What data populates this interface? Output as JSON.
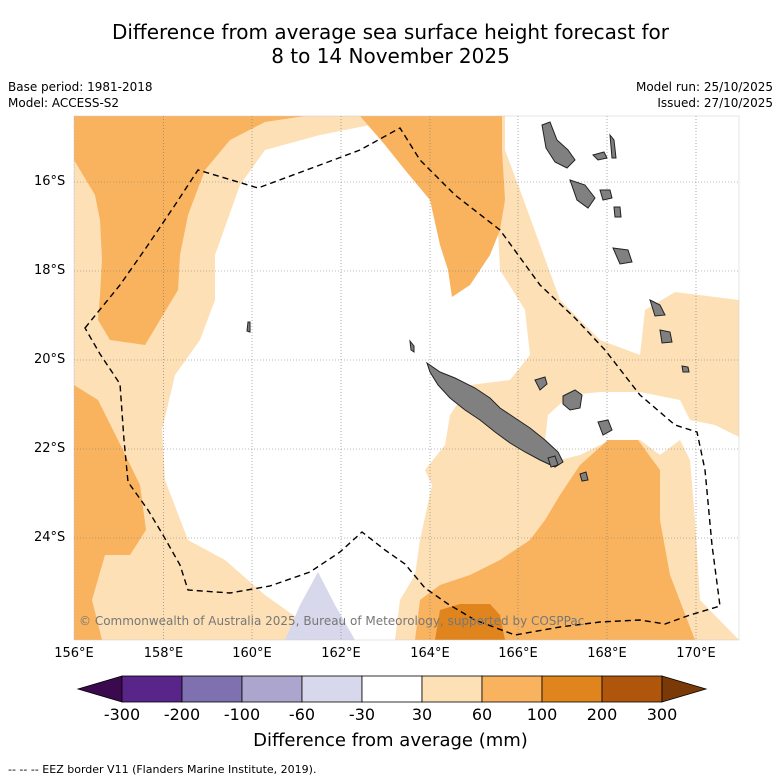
{
  "title": {
    "line1": "Difference from average sea surface height forecast for",
    "line2": "8 to 14 November 2025"
  },
  "meta": {
    "base_period": "Base period: 1981-2018",
    "model": "Model: ACCESS-S2",
    "model_run": "Model run: 25/10/2025",
    "issued": "Issued: 27/10/2025"
  },
  "map": {
    "lat_labels": [
      "16°S",
      "18°S",
      "20°S",
      "22°S",
      "24°S"
    ],
    "lon_labels": [
      "156°E",
      "158°E",
      "160°E",
      "162°E",
      "164°E",
      "166°E",
      "168°E",
      "170°E"
    ],
    "copyright": "© Commonwealth of Australia 2025, Bureau of Meteorology, supported by COSPPac",
    "colors": {
      "ocean": "#ffffff",
      "band_30_60": "#fde0b6",
      "band_60_100": "#f9b35e",
      "band_100_200": "#e0851e",
      "band_m60_m30": "#d8d8ec",
      "land": "#808080",
      "grid": "#777777"
    }
  },
  "colorbar": {
    "title": "Difference from average (mm)",
    "tick_labels": [
      "-300",
      "-200",
      "-100",
      "-60",
      "-30",
      "30",
      "60",
      "100",
      "200",
      "300"
    ],
    "colors": [
      "#3b0a4e",
      "#5a2589",
      "#7f70b0",
      "#aca6cf",
      "#d8d8ec",
      "#ffffff",
      "#fde0b6",
      "#f9b35e",
      "#e0851e",
      "#b0560c",
      "#7a3a07"
    ]
  },
  "footer": "--  --  -- EEZ border V11 (Flanders Marine Institute, 2019)."
}
